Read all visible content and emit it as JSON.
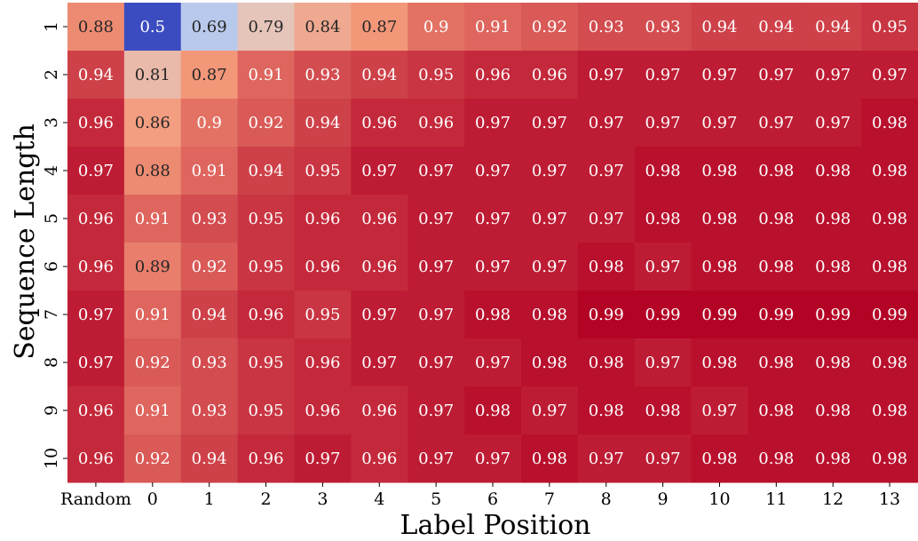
{
  "chart_data": {
    "type": "heatmap",
    "xlabel": "Label Position",
    "ylabel": "Sequence Length",
    "x_categories": [
      "Random",
      "0",
      "1",
      "2",
      "3",
      "4",
      "5",
      "6",
      "7",
      "8",
      "9",
      "10",
      "11",
      "12",
      "13"
    ],
    "y_categories": [
      "1",
      "2",
      "3",
      "4",
      "5",
      "6",
      "7",
      "8",
      "9",
      "10"
    ],
    "colormap": "coolwarm",
    "colorbar": false,
    "annotations": true,
    "values": [
      [
        "0.88",
        "0.5",
        "0.69",
        "0.79",
        "0.84",
        "0.87",
        "0.9",
        "0.91",
        "0.92",
        "0.93",
        "0.93",
        "0.94",
        "0.94",
        "0.94",
        "0.95"
      ],
      [
        "0.94",
        "0.81",
        "0.87",
        "0.91",
        "0.93",
        "0.94",
        "0.95",
        "0.96",
        "0.96",
        "0.97",
        "0.97",
        "0.97",
        "0.97",
        "0.97",
        "0.97"
      ],
      [
        "0.96",
        "0.86",
        "0.9",
        "0.92",
        "0.94",
        "0.96",
        "0.96",
        "0.97",
        "0.97",
        "0.97",
        "0.97",
        "0.97",
        "0.97",
        "0.97",
        "0.98"
      ],
      [
        "0.97",
        "0.88",
        "0.91",
        "0.94",
        "0.95",
        "0.97",
        "0.97",
        "0.97",
        "0.97",
        "0.97",
        "0.98",
        "0.98",
        "0.98",
        "0.98",
        "0.98"
      ],
      [
        "0.96",
        "0.91",
        "0.93",
        "0.95",
        "0.96",
        "0.96",
        "0.97",
        "0.97",
        "0.97",
        "0.97",
        "0.98",
        "0.98",
        "0.98",
        "0.98",
        "0.98"
      ],
      [
        "0.96",
        "0.89",
        "0.92",
        "0.95",
        "0.96",
        "0.96",
        "0.97",
        "0.97",
        "0.97",
        "0.98",
        "0.97",
        "0.98",
        "0.98",
        "0.98",
        "0.98"
      ],
      [
        "0.97",
        "0.91",
        "0.94",
        "0.96",
        "0.95",
        "0.97",
        "0.97",
        "0.98",
        "0.98",
        "0.99",
        "0.99",
        "0.99",
        "0.99",
        "0.99",
        "0.99"
      ],
      [
        "0.97",
        "0.92",
        "0.93",
        "0.95",
        "0.96",
        "0.97",
        "0.97",
        "0.97",
        "0.98",
        "0.98",
        "0.97",
        "0.98",
        "0.98",
        "0.98",
        "0.98"
      ],
      [
        "0.96",
        "0.91",
        "0.93",
        "0.95",
        "0.96",
        "0.96",
        "0.97",
        "0.98",
        "0.97",
        "0.98",
        "0.98",
        "0.97",
        "0.98",
        "0.98",
        "0.98"
      ],
      [
        "0.96",
        "0.92",
        "0.94",
        "0.96",
        "0.97",
        "0.96",
        "0.97",
        "0.97",
        "0.98",
        "0.97",
        "0.97",
        "0.98",
        "0.98",
        "0.98",
        "0.98"
      ]
    ]
  }
}
